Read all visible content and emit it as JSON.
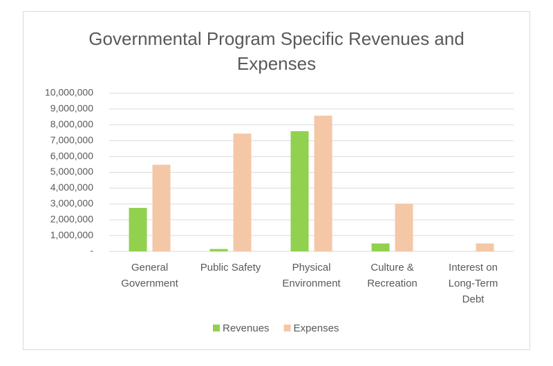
{
  "chart_data": {
    "type": "bar",
    "title": "Governmental Program Specific Revenues and Expenses",
    "categories": [
      "General Government",
      "Public Safety",
      "Physical Environment",
      "Culture & Recreation",
      "Interest on Long-Term Debt"
    ],
    "series": [
      {
        "name": "Revenues",
        "color": "#92d050",
        "values": [
          2750000,
          150000,
          7600000,
          500000,
          0
        ]
      },
      {
        "name": "Expenses",
        "color": "#f4c7a7",
        "values": [
          5480000,
          7450000,
          8580000,
          3000000,
          500000
        ]
      }
    ],
    "ylim": [
      0,
      10000000
    ],
    "yticks": [
      {
        "value": 0,
        "label": "-"
      },
      {
        "value": 1000000,
        "label": "1,000,000"
      },
      {
        "value": 2000000,
        "label": "2,000,000"
      },
      {
        "value": 3000000,
        "label": "3,000,000"
      },
      {
        "value": 4000000,
        "label": "4,000,000"
      },
      {
        "value": 5000000,
        "label": "5,000,000"
      },
      {
        "value": 6000000,
        "label": "6,000,000"
      },
      {
        "value": 7000000,
        "label": "7,000,000"
      },
      {
        "value": 8000000,
        "label": "8,000,000"
      },
      {
        "value": 9000000,
        "label": "9,000,000"
      },
      {
        "value": 10000000,
        "label": "10,000,000"
      }
    ],
    "grid": true,
    "legend": "bottom"
  }
}
